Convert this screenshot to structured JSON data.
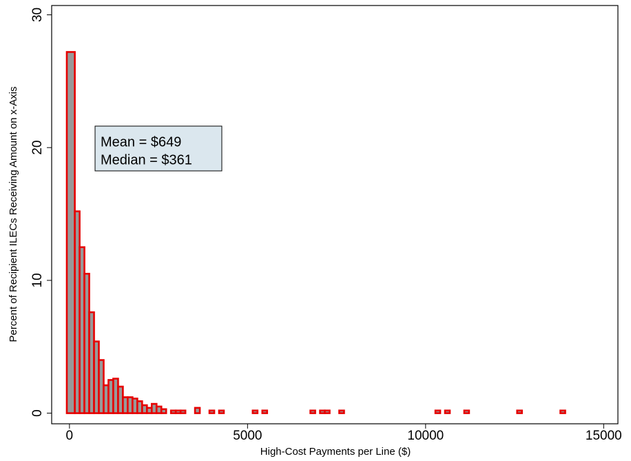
{
  "chart_data": {
    "type": "histogram",
    "xlabel": "High-Cost Payments per Line ($)",
    "ylabel": "Percent of Recipient ILECs Receiving Amount on x-Axis",
    "annotations": [
      "Mean = $649",
      "Median = $361"
    ],
    "bins": [
      -75,
      150,
      285,
      420,
      555,
      690,
      825,
      960,
      1095,
      1230,
      1365,
      1500,
      1635,
      1770,
      1905,
      2040,
      2175,
      2310,
      2445,
      2580,
      2715,
      2850,
      2985,
      3120,
      3255,
      3390,
      3525,
      3660,
      3795,
      3930,
      4065,
      4200,
      4335,
      4470,
      4605,
      4740,
      4875,
      5010,
      5145,
      5280,
      5415,
      5550,
      5685,
      5820,
      5955,
      6090,
      6225,
      6360,
      6495,
      6630,
      6765,
      6900,
      7035,
      7170,
      7305,
      7440,
      7575,
      7710,
      7845,
      7980,
      8115,
      8250,
      8385,
      8520,
      8655,
      8790,
      8925,
      9060,
      9195,
      9330,
      9465,
      9600,
      9735,
      9870,
      10005,
      10140,
      10275,
      10410,
      10545,
      10680,
      10815,
      10950,
      11085,
      11220,
      11355,
      11490,
      11625,
      11760,
      11895,
      12030,
      12165,
      12300,
      12435,
      12570,
      12705,
      12840,
      12975,
      13110,
      13245,
      13380,
      13515,
      13650,
      13785,
      13920
    ],
    "values": [
      27.2,
      15.2,
      12.5,
      10.5,
      7.6,
      5.4,
      4.0,
      2.1,
      2.5,
      2.6,
      2.0,
      1.2,
      1.2,
      1.1,
      0.9,
      0.6,
      0.4,
      0.7,
      0.5,
      0.3,
      0,
      0.2,
      0.2,
      0.2,
      0,
      0,
      0.4,
      0,
      0,
      0.2,
      0,
      0.2,
      0,
      0,
      0,
      0,
      0,
      0,
      0.2,
      0,
      0.2,
      0,
      0,
      0,
      0,
      0,
      0,
      0,
      0,
      0,
      0.2,
      0,
      0.2,
      0.2,
      0,
      0,
      0.2,
      0,
      0,
      0,
      0,
      0,
      0,
      0,
      0,
      0,
      0,
      0,
      0,
      0,
      0,
      0,
      0,
      0,
      0,
      0,
      0.2,
      0,
      0.2,
      0,
      0,
      0,
      0.2,
      0,
      0,
      0,
      0,
      0,
      0,
      0,
      0,
      0,
      0,
      0.2,
      0,
      0,
      0,
      0,
      0,
      0,
      0,
      0,
      0.2
    ],
    "color": "#999999",
    "edgecolor": "#e60000",
    "xlim": [
      -500,
      15400
    ],
    "xticks": [
      0,
      5000,
      10000,
      15000
    ],
    "ylim": [
      -0.8,
      30.7
    ],
    "yticks": [
      0,
      10,
      20,
      30
    ]
  }
}
